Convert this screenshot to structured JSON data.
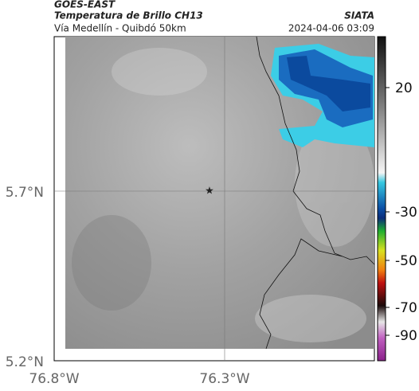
{
  "header": {
    "satellite": "GOES-EAST",
    "title": "Temperatura de Brillo CH13",
    "subtitle": "Vía Medellín - Quibdó 50km",
    "source": "SIATA",
    "datetime": "2024-04-06 03:09"
  },
  "axes": {
    "y_labels": [
      "5.7°N",
      "5.2°N"
    ],
    "x_labels": [
      "76.8°W",
      "76.3°W"
    ]
  },
  "colorbar": {
    "ticks": [
      20,
      -30,
      -50,
      -70,
      -90
    ]
  }
}
